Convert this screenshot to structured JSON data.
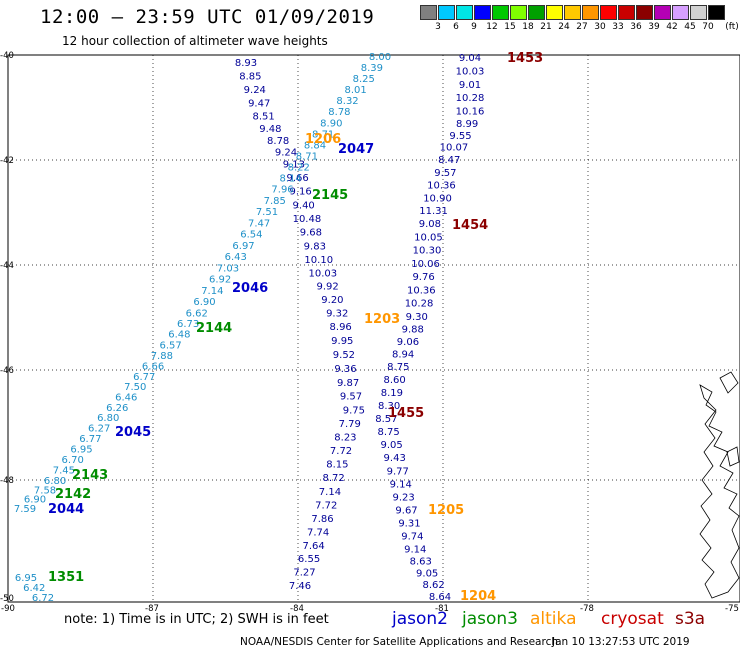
{
  "header": {
    "title": "12:00 — 23:59 UTC 01/09/2019",
    "subtitle": "12 hour collection of altimeter wave heights"
  },
  "legend": {
    "unit": "(ft)",
    "cells": [
      {
        "color": "#808080",
        "label": "3"
      },
      {
        "color": "#00c8ff",
        "label": "6"
      },
      {
        "color": "#00e6e6",
        "label": "9"
      },
      {
        "color": "#0000ff",
        "label": "12"
      },
      {
        "color": "#00c800",
        "label": "15"
      },
      {
        "color": "#80ff00",
        "label": "18"
      },
      {
        "color": "#00a000",
        "label": "21"
      },
      {
        "color": "#ffff00",
        "label": "24"
      },
      {
        "color": "#ffc800",
        "label": "27"
      },
      {
        "color": "#ff9600",
        "label": "30"
      },
      {
        "color": "#ff0000",
        "label": "33"
      },
      {
        "color": "#c80000",
        "label": "36"
      },
      {
        "color": "#8b0000",
        "label": "39"
      },
      {
        "color": "#b400b4",
        "label": "42"
      },
      {
        "color": "#d7a0ff",
        "label": "45"
      },
      {
        "color": "#d2d2d2",
        "label": "70"
      },
      {
        "color": "#000000",
        "label": ""
      }
    ]
  },
  "axes": {
    "lat_labels": [
      "-40",
      "-42",
      "-44",
      "-46",
      "-48",
      "-50"
    ],
    "lon_labels": [
      "-90",
      "-87",
      "-84",
      "-81",
      "-78",
      "-75"
    ]
  },
  "passes": [
    {
      "label": "1453",
      "color": "#8b0000"
    },
    {
      "label": "1454",
      "color": "#8b0000"
    },
    {
      "label": "1455",
      "color": "#8b0000"
    },
    {
      "label": "2047",
      "color": "#0000c8"
    },
    {
      "label": "2046",
      "color": "#0000c8"
    },
    {
      "label": "2045",
      "color": "#0000c8"
    },
    {
      "label": "2044",
      "color": "#0000c8"
    },
    {
      "label": "2145",
      "color": "#008c00"
    },
    {
      "label": "2144",
      "color": "#008c00"
    },
    {
      "label": "2143",
      "color": "#008c00"
    },
    {
      "label": "2142",
      "color": "#008c00"
    },
    {
      "label": "1351",
      "color": "#008c00"
    },
    {
      "label": "1203",
      "color": "#ff9600"
    },
    {
      "label": "1204",
      "color": "#ff9600"
    },
    {
      "label": "1205",
      "color": "#ff9600"
    },
    {
      "label": "1206",
      "color": "#ff9600"
    }
  ],
  "tracks": [
    {
      "name": "track-east-navy",
      "color": "#000096",
      "values": [
        "9.04",
        "10.03",
        "9.01",
        "10.28",
        "10.16",
        "8.99",
        "9.55",
        "10.07",
        "8.47",
        "9.57",
        "10.36",
        "10.90",
        "11.31",
        "9.08",
        "10.05",
        "10.30",
        "10.06",
        "9.76",
        "10.36",
        "10.28",
        "9.30",
        "9.88",
        "9.06",
        "8.94",
        "8.75",
        "8.60",
        "8.19",
        "8.30",
        "8.57",
        "8.75",
        "9.05",
        "9.43",
        "9.77",
        "9.14",
        "9.23",
        "9.67",
        "9.31",
        "9.74",
        "9.14",
        "8.63",
        "9.05",
        "8.62",
        "8.64"
      ]
    },
    {
      "name": "track-west-navy",
      "color": "#000096",
      "values": [
        "8.93",
        "8.85",
        "9.24",
        "9.47",
        "8.51",
        "9.48",
        "8.78",
        "9.24",
        "9.13",
        "9.66",
        "9.16",
        "9.40",
        "10.48",
        "9.68",
        "9.83",
        "10.10",
        "10.03",
        "9.92",
        "9.20",
        "9.32",
        "8.96",
        "9.95",
        "9.52",
        "9.36",
        "9.87",
        "9.57",
        "9.75",
        "7.79",
        "8.23",
        "7.72",
        "8.15",
        "8.72",
        "7.14",
        "7.72",
        "7.86",
        "7.74",
        "7.64",
        "6.55",
        "7.27",
        "7.46"
      ]
    },
    {
      "name": "track-ne-cyan",
      "color": "#1e90c8",
      "values": [
        "8.00",
        "8.39",
        "8.25",
        "8.01",
        "8.32",
        "8.78",
        "8.90",
        "8.71",
        "8.84",
        "8.71",
        "8.22",
        "8.14",
        "7.96",
        "7.85",
        "7.51",
        "7.47",
        "6.54",
        "6.97",
        "6.43",
        "7.03",
        "6.92",
        "7.14",
        "6.90",
        "6.62",
        "6.73",
        "6.48",
        "6.57",
        "7.88",
        "6.66",
        "6.77",
        "7.50",
        "6.46",
        "6.26",
        "6.80",
        "6.27",
        "6.77",
        "6.95",
        "6.70",
        "7.45",
        "6.80",
        "7.58",
        "6.90",
        "7.59"
      ]
    },
    {
      "name": "track-sw-cyan",
      "color": "#1e90c8",
      "values": [
        "6.95",
        "6.42",
        "6.72"
      ]
    }
  ],
  "footer": {
    "note": "note:  1) Time is in UTC;  2) SWH is in feet",
    "missions": [
      {
        "name": "jason2",
        "color": "#0000c8"
      },
      {
        "name": "jason3",
        "color": "#008c00"
      },
      {
        "name": "altika",
        "color": "#ff9600"
      },
      {
        "name": "cryosat",
        "color": "#c80000"
      },
      {
        "name": "s3a",
        "color": "#8b0000"
      }
    ],
    "credit": "NOAA/NESDIS Center for Satellite Applications and Research",
    "timestamp": "Jan 10 13:27:53 UTC 2019"
  }
}
